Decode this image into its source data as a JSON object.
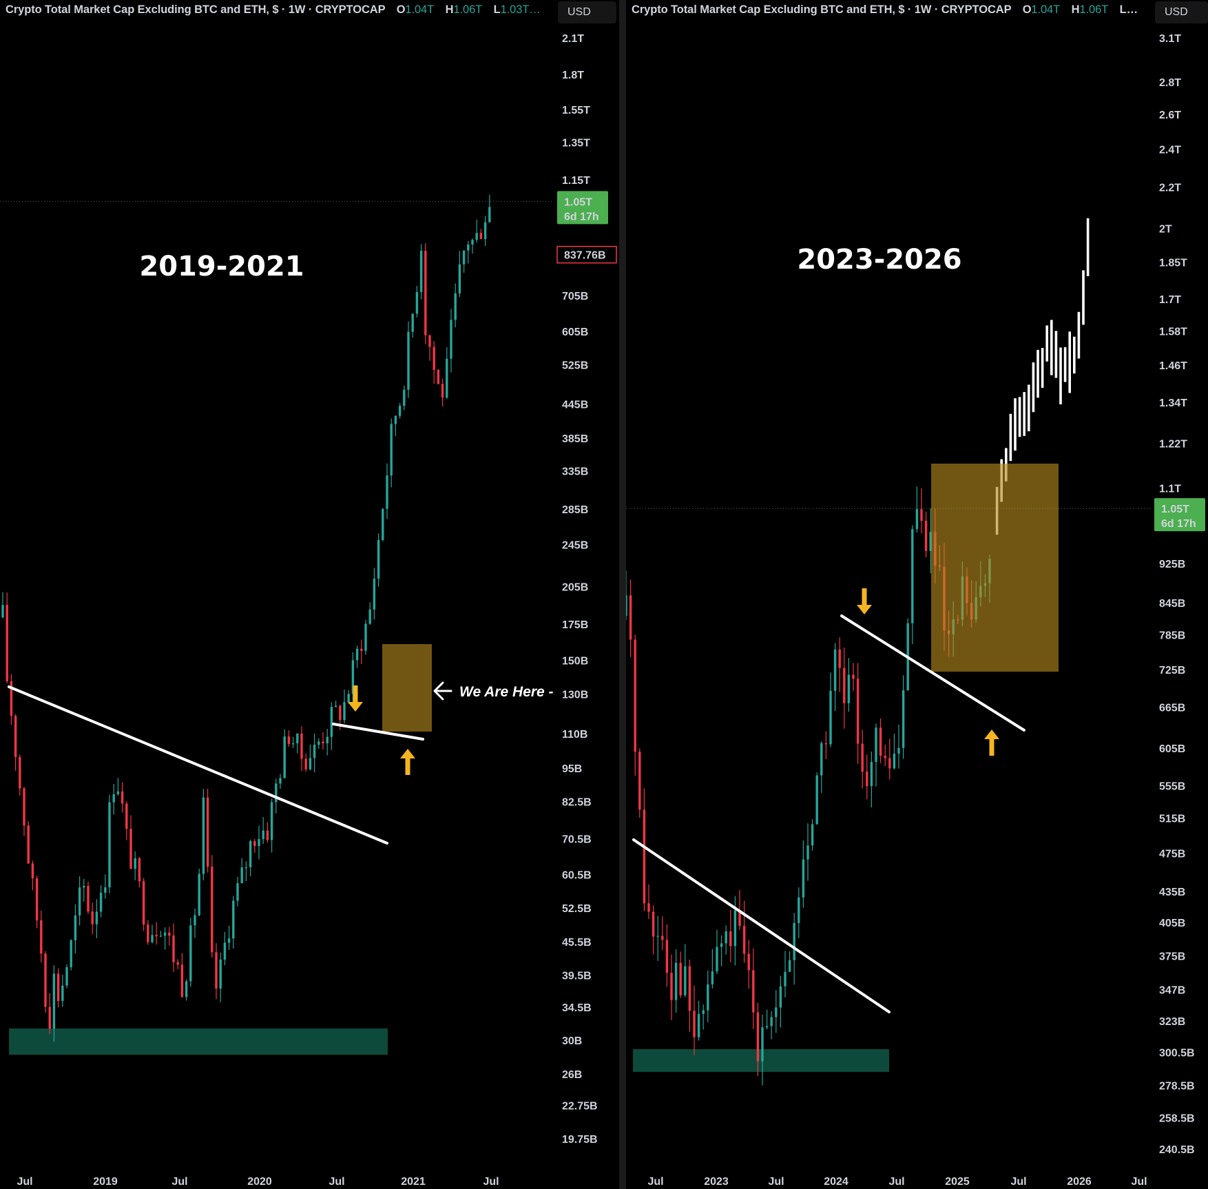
{
  "chart_data": [
    {
      "type": "candlestick",
      "title": "Crypto Total Market Cap Excluding BTC and ETH, $ · 1W · CRYPTOCAP",
      "ohlc": {
        "o": "1.04T",
        "h": "1.06T",
        "l": "1.03T…"
      },
      "currency": "USD",
      "period_label": "2019-2021",
      "y_scale": "log",
      "y_ticks": [
        "2.1T",
        "1.8T",
        "1.55T",
        "1.35T",
        "1.15T",
        "1.05T",
        "837.76B",
        "705B",
        "605B",
        "525B",
        "445B",
        "385B",
        "335B",
        "285B",
        "245B",
        "205B",
        "175B",
        "150B",
        "130B",
        "110B",
        "95B",
        "82.5B",
        "70.5B",
        "60.5B",
        "52.5B",
        "45.5B",
        "39.5B",
        "34.5B",
        "30B",
        "26B",
        "22.75B",
        "19.75B"
      ],
      "y_tick_values": [
        2100,
        1800,
        1550,
        1350,
        1150,
        1050,
        837.76,
        705,
        605,
        525,
        445,
        385,
        335,
        285,
        245,
        205,
        175,
        150,
        130,
        110,
        95,
        82.5,
        70.5,
        60.5,
        52.5,
        45.5,
        39.5,
        34.5,
        30,
        26,
        22.75,
        19.75
      ],
      "x_ticks": [
        "Jul",
        "2019",
        "Jul",
        "2020",
        "Jul",
        "2021",
        "Jul"
      ],
      "current_price": {
        "value": "1.05T",
        "countdown": "6d 17h",
        "color": "#4caf50"
      },
      "low_marker": {
        "value": "837.76B",
        "color": "#f23645"
      },
      "annotations": {
        "we_are_here": "We Are Here -"
      },
      "path_billions": [
        [
          0,
          180
        ],
        [
          6,
          140
        ],
        [
          16,
          110
        ],
        [
          24,
          90
        ],
        [
          40,
          60
        ],
        [
          60,
          40
        ],
        [
          66,
          30
        ],
        [
          72,
          40
        ],
        [
          82,
          36
        ],
        [
          100,
          45
        ],
        [
          116,
          58
        ],
        [
          130,
          50
        ],
        [
          150,
          62
        ],
        [
          156,
          82
        ],
        [
          164,
          95
        ],
        [
          180,
          70
        ],
        [
          196,
          58
        ],
        [
          212,
          48
        ],
        [
          230,
          50
        ],
        [
          248,
          43
        ],
        [
          262,
          38
        ],
        [
          276,
          48
        ],
        [
          286,
          62
        ],
        [
          292,
          82
        ],
        [
          300,
          50
        ],
        [
          306,
          36
        ],
        [
          316,
          40
        ],
        [
          332,
          52
        ],
        [
          348,
          60
        ],
        [
          364,
          72
        ],
        [
          386,
          74
        ],
        [
          398,
          90
        ],
        [
          416,
          112
        ],
        [
          432,
          100
        ],
        [
          452,
          102
        ],
        [
          464,
          110
        ],
        [
          480,
          118
        ],
        [
          496,
          125
        ],
        [
          510,
          145
        ],
        [
          520,
          165
        ],
        [
          532,
          180
        ],
        [
          544,
          240
        ],
        [
          556,
          320
        ],
        [
          568,
          420
        ],
        [
          578,
          460
        ],
        [
          592,
          600
        ],
        [
          604,
          800
        ],
        [
          608,
          900
        ],
        [
          612,
          640
        ],
        [
          626,
          520
        ],
        [
          632,
          480
        ],
        [
          642,
          470
        ],
        [
          654,
          640
        ],
        [
          666,
          800
        ],
        [
          674,
          900
        ],
        [
          686,
          880
        ],
        [
          700,
          1000
        ],
        [
          712,
          1050
        ]
      ]
    },
    {
      "type": "candlestick",
      "title": "Crypto Total Market Cap Excluding BTC and ETH, $ · 1W · CRYPTOCAP",
      "ohlc": {
        "o": "1.04T",
        "h": "1.06T",
        "l": "…"
      },
      "currency": "USD",
      "period_label": "2023-2026",
      "y_scale": "log",
      "y_ticks": [
        "3.1T",
        "2.8T",
        "2.6T",
        "2.4T",
        "2.2T",
        "2T",
        "1.85T",
        "1.7T",
        "1.58T",
        "1.46T",
        "1.34T",
        "1.22T",
        "1.1T",
        "1.05T",
        "925B",
        "845B",
        "785B",
        "725B",
        "665B",
        "605B",
        "555B",
        "515B",
        "475B",
        "435B",
        "405B",
        "375B",
        "347B",
        "323B",
        "300.5B",
        "278.5B",
        "258.5B",
        "240.5B"
      ],
      "y_tick_values": [
        3100,
        2800,
        2600,
        2400,
        2200,
        2000,
        1850,
        1700,
        1580,
        1460,
        1340,
        1220,
        1100,
        1050,
        925,
        845,
        785,
        725,
        665,
        605,
        555,
        515,
        475,
        435,
        405,
        375,
        347,
        323,
        300.5,
        278.5,
        258.5,
        240.5
      ],
      "x_ticks": [
        "Jul",
        "2023",
        "Jul",
        "2024",
        "Jul",
        "2025",
        "Jul",
        "2026",
        "Jul"
      ],
      "current_price": {
        "value": "1.05T",
        "countdown": "6d 17h",
        "color": "#4caf50"
      },
      "path_billions": [
        [
          0,
          820
        ],
        [
          8,
          760
        ],
        [
          14,
          620
        ],
        [
          20,
          500
        ],
        [
          28,
          430
        ],
        [
          38,
          390
        ],
        [
          48,
          410
        ],
        [
          56,
          390
        ],
        [
          66,
          360
        ],
        [
          78,
          370
        ],
        [
          92,
          330
        ],
        [
          104,
          305
        ],
        [
          116,
          345
        ],
        [
          128,
          372
        ],
        [
          142,
          385
        ],
        [
          156,
          400
        ],
        [
          170,
          372
        ],
        [
          184,
          342
        ],
        [
          190,
          312
        ],
        [
          200,
          338
        ],
        [
          212,
          320
        ],
        [
          224,
          330
        ],
        [
          236,
          370
        ],
        [
          246,
          410
        ],
        [
          256,
          455
        ],
        [
          266,
          500
        ],
        [
          276,
          560
        ],
        [
          288,
          610
        ],
        [
          296,
          690
        ],
        [
          306,
          740
        ],
        [
          316,
          660
        ],
        [
          326,
          690
        ],
        [
          336,
          640
        ],
        [
          346,
          590
        ],
        [
          356,
          580
        ],
        [
          366,
          610
        ],
        [
          376,
          560
        ],
        [
          386,
          600
        ],
        [
          396,
          610
        ],
        [
          402,
          640
        ],
        [
          408,
          830
        ],
        [
          414,
          980
        ],
        [
          420,
          1060
        ],
        [
          428,
          1000
        ],
        [
          440,
          980
        ],
        [
          452,
          900
        ],
        [
          462,
          780
        ],
        [
          472,
          740
        ],
        [
          480,
          800
        ],
        [
          492,
          880
        ],
        [
          504,
          780
        ],
        [
          514,
          860
        ],
        [
          526,
          960
        ],
        [
          532,
          1040
        ]
      ],
      "projection_billions": [
        [
          532,
          1040
        ],
        [
          540,
          1070
        ],
        [
          548,
          1120
        ],
        [
          556,
          1200
        ],
        [
          566,
          1290
        ],
        [
          578,
          1320
        ],
        [
          590,
          1360
        ],
        [
          602,
          1450
        ],
        [
          614,
          1540
        ],
        [
          624,
          1500
        ],
        [
          632,
          1440
        ],
        [
          642,
          1460
        ],
        [
          652,
          1520
        ],
        [
          660,
          1620
        ],
        [
          668,
          1850
        ],
        [
          676,
          2100
        ]
      ]
    }
  ],
  "colors": {
    "up": "#26a69a",
    "down": "#f23645",
    "badge_green": "#4caf50",
    "projection": "#ffffff",
    "box": "#b68a1e",
    "support": "#0d4a3b",
    "arrow": "#f5b521"
  }
}
